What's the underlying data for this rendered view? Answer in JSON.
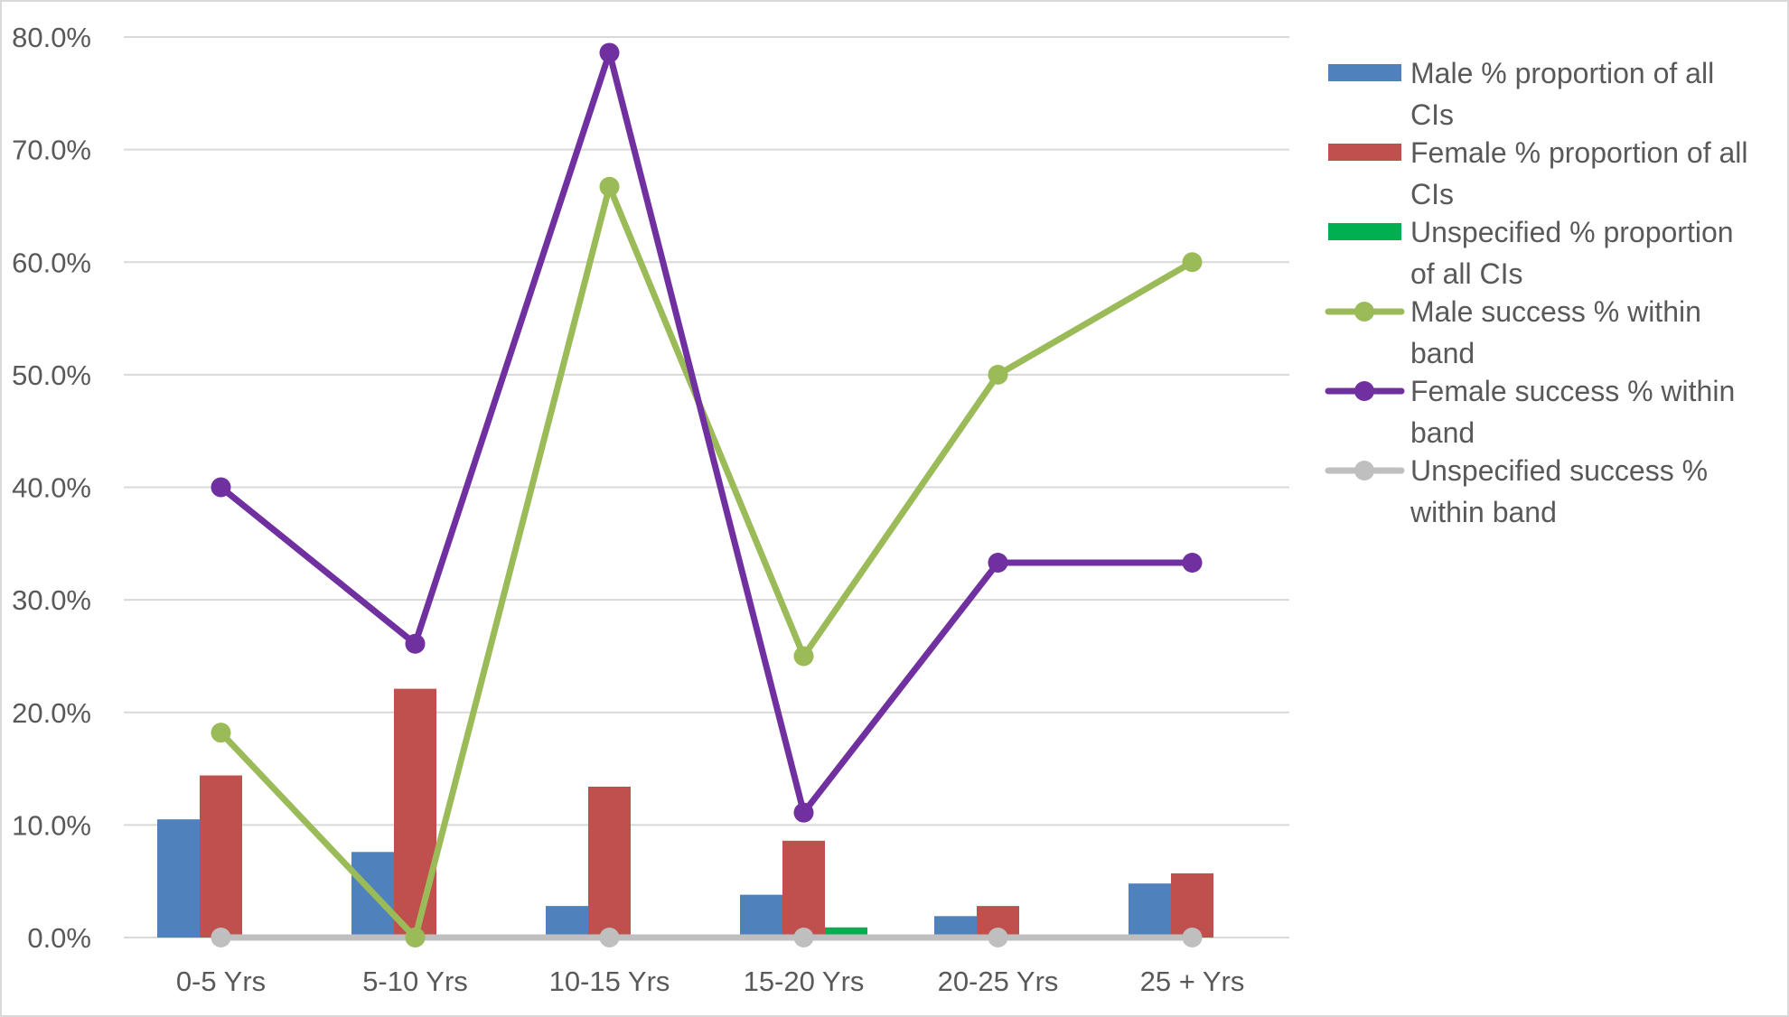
{
  "chart_data": {
    "type": "bar",
    "categories": [
      "0-5 Yrs",
      "5-10 Yrs",
      "10-15 Yrs",
      "15-20 Yrs",
      "20-25 Yrs",
      "25 + Yrs"
    ],
    "ylim": [
      0,
      80
    ],
    "yticks": [
      "0.0%",
      "10.0%",
      "20.0%",
      "30.0%",
      "40.0%",
      "50.0%",
      "60.0%",
      "70.0%",
      "80.0%"
    ],
    "grid": true,
    "legend_position": "right",
    "bar_series": [
      {
        "name": "Male % proportion of all CIs",
        "color": "#4f81bd",
        "values": [
          10.5,
          7.6,
          2.8,
          3.8,
          1.9,
          4.8
        ]
      },
      {
        "name": "Female % proportion of all CIs",
        "color": "#c0504d",
        "values": [
          14.4,
          22.1,
          13.4,
          8.6,
          2.8,
          5.7
        ]
      },
      {
        "name": "Unspecified % proportion of all CIs",
        "color": "#00b050",
        "values": [
          0,
          0,
          0,
          0.9,
          0,
          0
        ]
      }
    ],
    "line_series": [
      {
        "name": "Male success % within band",
        "color": "#9bbb59",
        "values": [
          18.2,
          0,
          66.7,
          25.0,
          50.0,
          60.0
        ]
      },
      {
        "name": "Female success % within band",
        "color": "#7030a0",
        "values": [
          40.0,
          26.1,
          78.6,
          11.1,
          33.3,
          33.3
        ]
      },
      {
        "name": "Unspecified success % within band",
        "color": "#bfbfbf",
        "values": [
          0,
          0,
          0,
          0,
          0,
          0
        ]
      }
    ],
    "legend_lines": [
      [
        "Male % proportion of all",
        "CIs"
      ],
      [
        "Female % proportion of all",
        "CIs"
      ],
      [
        "Unspecified % proportion",
        "of all CIs"
      ],
      [
        "Male success % within",
        "band"
      ],
      [
        "Female success % within",
        "band"
      ],
      [
        "Unspecified success %",
        "within band"
      ]
    ]
  }
}
